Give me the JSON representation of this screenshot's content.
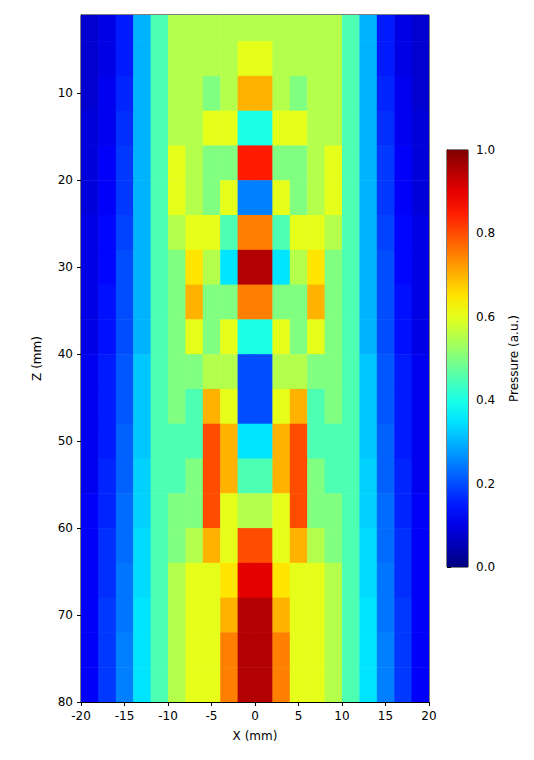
{
  "chart_data": {
    "type": "heatmap",
    "xlabel": "X (mm)",
    "ylabel": "Z (mm)",
    "xlim": [
      -20,
      20
    ],
    "xticks": [
      -20,
      -15,
      -10,
      -5,
      0,
      5,
      10,
      15,
      20
    ],
    "ylim": [
      1,
      80
    ],
    "yticks": [
      10,
      20,
      30,
      40,
      50,
      60,
      70,
      80
    ],
    "x": [
      -19,
      -17,
      -15,
      -13,
      -11,
      -9,
      -7,
      -5,
      -3,
      -1,
      1,
      3,
      5,
      7,
      9,
      11,
      13,
      15,
      17,
      19
    ],
    "y": [
      2,
      6,
      10,
      14,
      18,
      22,
      26,
      30,
      34,
      38,
      42,
      46,
      50,
      54,
      58,
      62,
      66,
      70,
      74,
      78
    ],
    "values": [
      [
        0.08,
        0.1,
        0.15,
        0.3,
        0.45,
        0.55,
        0.55,
        0.55,
        0.55,
        0.55,
        0.55,
        0.55,
        0.55,
        0.55,
        0.55,
        0.45,
        0.3,
        0.15,
        0.1,
        0.08
      ],
      [
        0.08,
        0.1,
        0.15,
        0.3,
        0.45,
        0.55,
        0.55,
        0.55,
        0.55,
        0.6,
        0.6,
        0.55,
        0.55,
        0.55,
        0.55,
        0.45,
        0.3,
        0.15,
        0.1,
        0.08
      ],
      [
        0.08,
        0.11,
        0.16,
        0.3,
        0.45,
        0.55,
        0.55,
        0.5,
        0.55,
        0.7,
        0.7,
        0.55,
        0.5,
        0.55,
        0.55,
        0.45,
        0.3,
        0.16,
        0.11,
        0.08
      ],
      [
        0.09,
        0.11,
        0.17,
        0.3,
        0.45,
        0.55,
        0.55,
        0.6,
        0.6,
        0.4,
        0.4,
        0.6,
        0.6,
        0.55,
        0.55,
        0.45,
        0.3,
        0.17,
        0.11,
        0.09
      ],
      [
        0.09,
        0.12,
        0.18,
        0.3,
        0.45,
        0.6,
        0.55,
        0.5,
        0.5,
        0.85,
        0.85,
        0.5,
        0.5,
        0.55,
        0.6,
        0.45,
        0.3,
        0.18,
        0.12,
        0.09
      ],
      [
        0.09,
        0.12,
        0.18,
        0.3,
        0.45,
        0.6,
        0.55,
        0.5,
        0.6,
        0.25,
        0.25,
        0.6,
        0.5,
        0.55,
        0.6,
        0.45,
        0.3,
        0.18,
        0.12,
        0.09
      ],
      [
        0.1,
        0.13,
        0.19,
        0.3,
        0.45,
        0.55,
        0.6,
        0.6,
        0.45,
        0.75,
        0.75,
        0.45,
        0.6,
        0.6,
        0.55,
        0.45,
        0.3,
        0.19,
        0.13,
        0.1
      ],
      [
        0.1,
        0.13,
        0.2,
        0.3,
        0.45,
        0.5,
        0.65,
        0.55,
        0.35,
        0.95,
        0.95,
        0.35,
        0.55,
        0.65,
        0.5,
        0.45,
        0.3,
        0.2,
        0.13,
        0.1
      ],
      [
        0.1,
        0.14,
        0.2,
        0.3,
        0.45,
        0.5,
        0.7,
        0.5,
        0.5,
        0.75,
        0.75,
        0.5,
        0.5,
        0.7,
        0.5,
        0.45,
        0.3,
        0.2,
        0.14,
        0.1
      ],
      [
        0.1,
        0.14,
        0.2,
        0.3,
        0.45,
        0.5,
        0.6,
        0.5,
        0.6,
        0.4,
        0.4,
        0.6,
        0.5,
        0.6,
        0.5,
        0.45,
        0.3,
        0.2,
        0.14,
        0.1
      ],
      [
        0.11,
        0.15,
        0.21,
        0.32,
        0.45,
        0.5,
        0.5,
        0.55,
        0.55,
        0.2,
        0.2,
        0.55,
        0.55,
        0.5,
        0.5,
        0.45,
        0.32,
        0.21,
        0.15,
        0.11
      ],
      [
        0.11,
        0.15,
        0.21,
        0.32,
        0.45,
        0.5,
        0.45,
        0.7,
        0.6,
        0.2,
        0.2,
        0.6,
        0.7,
        0.45,
        0.5,
        0.45,
        0.32,
        0.21,
        0.15,
        0.11
      ],
      [
        0.11,
        0.15,
        0.22,
        0.32,
        0.45,
        0.45,
        0.45,
        0.8,
        0.7,
        0.35,
        0.35,
        0.7,
        0.8,
        0.45,
        0.45,
        0.45,
        0.32,
        0.22,
        0.15,
        0.11
      ],
      [
        0.11,
        0.16,
        0.22,
        0.33,
        0.45,
        0.45,
        0.5,
        0.8,
        0.7,
        0.45,
        0.45,
        0.7,
        0.8,
        0.5,
        0.45,
        0.45,
        0.33,
        0.22,
        0.16,
        0.11
      ],
      [
        0.12,
        0.16,
        0.23,
        0.33,
        0.45,
        0.5,
        0.5,
        0.8,
        0.6,
        0.55,
        0.55,
        0.6,
        0.8,
        0.5,
        0.5,
        0.45,
        0.33,
        0.23,
        0.16,
        0.12
      ],
      [
        0.12,
        0.17,
        0.23,
        0.34,
        0.45,
        0.5,
        0.55,
        0.7,
        0.6,
        0.8,
        0.8,
        0.6,
        0.7,
        0.55,
        0.5,
        0.45,
        0.34,
        0.23,
        0.17,
        0.12
      ],
      [
        0.12,
        0.17,
        0.24,
        0.34,
        0.45,
        0.55,
        0.6,
        0.6,
        0.65,
        0.9,
        0.9,
        0.65,
        0.6,
        0.6,
        0.55,
        0.45,
        0.34,
        0.24,
        0.17,
        0.12
      ],
      [
        0.12,
        0.18,
        0.24,
        0.35,
        0.45,
        0.55,
        0.6,
        0.6,
        0.7,
        0.95,
        0.95,
        0.7,
        0.6,
        0.6,
        0.55,
        0.45,
        0.35,
        0.24,
        0.18,
        0.12
      ],
      [
        0.12,
        0.18,
        0.25,
        0.35,
        0.45,
        0.55,
        0.6,
        0.6,
        0.75,
        0.95,
        0.95,
        0.75,
        0.6,
        0.6,
        0.55,
        0.45,
        0.35,
        0.25,
        0.18,
        0.12
      ],
      [
        0.12,
        0.18,
        0.25,
        0.35,
        0.45,
        0.55,
        0.6,
        0.6,
        0.75,
        0.95,
        0.95,
        0.75,
        0.6,
        0.6,
        0.55,
        0.45,
        0.35,
        0.25,
        0.18,
        0.12
      ]
    ],
    "colorbar": {
      "label": "Pressure (a.u.)",
      "lim": [
        0,
        1
      ],
      "ticks": [
        {
          "value": 0,
          "label": "0.0"
        },
        {
          "value": 0.2,
          "label": "0.2"
        },
        {
          "value": 0.4,
          "label": "0.4"
        },
        {
          "value": 0.6,
          "label": "0.6"
        },
        {
          "value": 0.8,
          "label": "0.8"
        },
        {
          "value": 1,
          "label": "1.0"
        }
      ]
    }
  }
}
